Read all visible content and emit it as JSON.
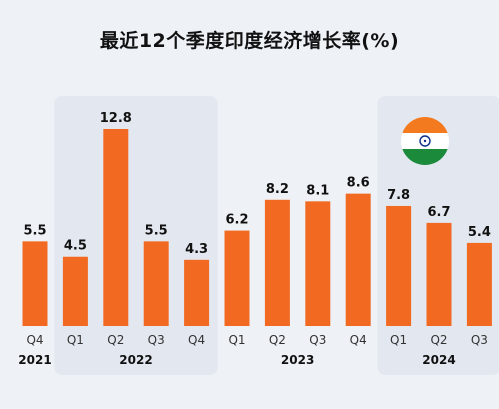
{
  "chart_data": {
    "type": "bar",
    "title": "最近12个季度印度经济增长率(%)",
    "categories": [
      "Q4",
      "Q1",
      "Q2",
      "Q3",
      "Q4",
      "Q1",
      "Q2",
      "Q3",
      "Q4",
      "Q1",
      "Q2",
      "Q3"
    ],
    "years": [
      {
        "label": "2021",
        "quarters": 1
      },
      {
        "label": "2022",
        "quarters": 4
      },
      {
        "label": "2023",
        "quarters": 4
      },
      {
        "label": "2024",
        "quarters": 3
      }
    ],
    "values": [
      5.5,
      4.5,
      12.8,
      5.5,
      4.3,
      6.2,
      8.2,
      8.1,
      8.6,
      7.8,
      6.7,
      5.4
    ],
    "value_labels": [
      "5.5",
      "4.5",
      "12.8",
      "5.5",
      "4.3",
      "6.2",
      "8.2",
      "8.1",
      "8.6",
      "7.8",
      "6.7",
      "5.4"
    ],
    "ylim": [
      0,
      12.8
    ],
    "grid": false,
    "xlabel": "",
    "ylabel": ""
  },
  "colors": {
    "bar": "#f26a22",
    "shade": "#e3e8f0",
    "background": "#eef2f7",
    "text": "#111111",
    "tick_text": "#333333"
  },
  "decor": {
    "flag_icon": "india-flag-icon"
  }
}
